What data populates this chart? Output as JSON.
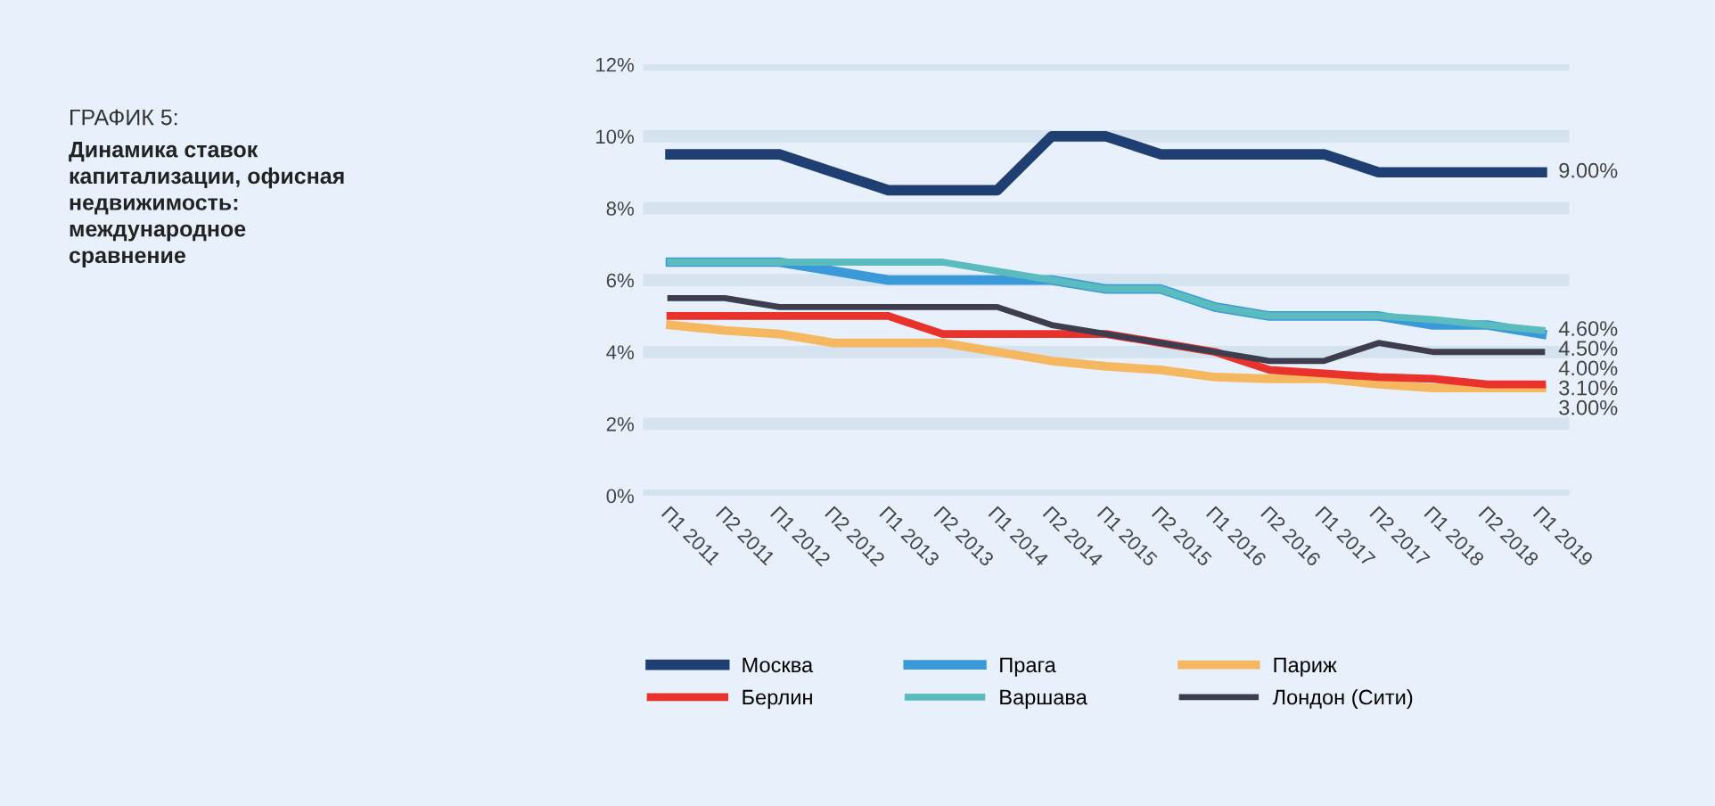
{
  "chart_data": {
    "type": "line",
    "title": "ГРАФИК 5:",
    "subtitle": "Динамика ставок\nкапитализации, офисная\nнедвижимость:\nмеждународное\nсравнение",
    "categories": [
      "П1 2011",
      "П2 2011",
      "П1 2012",
      "П2 2012",
      "П1 2013",
      "П2 2013",
      "П1 2014",
      "П2 2014",
      "П1 2015",
      "П2 2015",
      "П1 2016",
      "П2 2016",
      "П1 2017",
      "П2 2017",
      "П1 2018",
      "П2 2018",
      "П1 2019"
    ],
    "series": [
      {
        "name": "Москва",
        "color": "#1f3f73",
        "values": [
          9.5,
          9.5,
          9.5,
          9,
          8.5,
          8.5,
          8.5,
          10,
          10,
          9.5,
          9.5,
          9.5,
          9.5,
          9,
          9,
          9,
          9
        ]
      },
      {
        "name": "Прага",
        "color": "#3a9ad9",
        "values": [
          6.5,
          6.5,
          6.5,
          6.25,
          6,
          6,
          6,
          6,
          5.75,
          5.75,
          5.25,
          5,
          5,
          5,
          4.75,
          4.75,
          4.5
        ]
      },
      {
        "name": "Париж",
        "color": "#f5b860",
        "values": [
          4.75,
          4.6,
          4.5,
          4.25,
          4.25,
          4.25,
          4,
          3.75,
          3.6,
          3.5,
          3.3,
          3.25,
          3.25,
          3.1,
          3,
          3,
          3
        ]
      },
      {
        "name": "Берлин",
        "color": "#e8322b",
        "values": [
          5,
          5,
          5,
          5,
          5,
          4.5,
          4.5,
          4.5,
          4.5,
          4.25,
          4,
          3.5,
          3.4,
          3.3,
          3.25,
          3.1,
          3.1
        ]
      },
      {
        "name": "Варшава",
        "color": "#5bbcc0",
        "values": [
          6.5,
          6.5,
          6.5,
          6.5,
          6.5,
          6.5,
          6.25,
          6,
          5.75,
          5.75,
          5.25,
          5,
          5,
          5,
          4.9,
          4.75,
          4.6
        ]
      },
      {
        "name": "Лондон (Сити)",
        "color": "#3d3d4f",
        "values": [
          5.5,
          5.5,
          5.25,
          5.25,
          5.25,
          5.25,
          5.25,
          4.75,
          4.5,
          4.25,
          4,
          3.75,
          3.75,
          4.25,
          4,
          4,
          4
        ]
      }
    ],
    "annotations": [
      {
        "text": "9.00%",
        "x": "П1 2019",
        "y": 9
      },
      {
        "text": "4.60%",
        "x": "П1 2019",
        "y": 4.6
      },
      {
        "text": "4.50%",
        "x": "П1 2019",
        "y": 4.5
      },
      {
        "text": "4.00%",
        "x": "П1 2019",
        "y": 4
      },
      {
        "text": "3.10%",
        "x": "П1 2019",
        "y": 3.1
      },
      {
        "text": "3.00%",
        "x": "П1 2019",
        "y": 3
      }
    ],
    "ylim": [
      0,
      12
    ],
    "yticks": [
      {
        "value": 0,
        "label": "0%"
      },
      {
        "value": 2,
        "label": "2%"
      },
      {
        "value": 4,
        "label": "4%"
      },
      {
        "value": 6,
        "label": "6%"
      },
      {
        "value": 8,
        "label": "8%"
      },
      {
        "value": 10,
        "label": "10%"
      },
      {
        "value": 12,
        "label": "12%"
      }
    ],
    "grid": "y",
    "legend": "bottom",
    "marker": "none",
    "line_style": "solid"
  }
}
